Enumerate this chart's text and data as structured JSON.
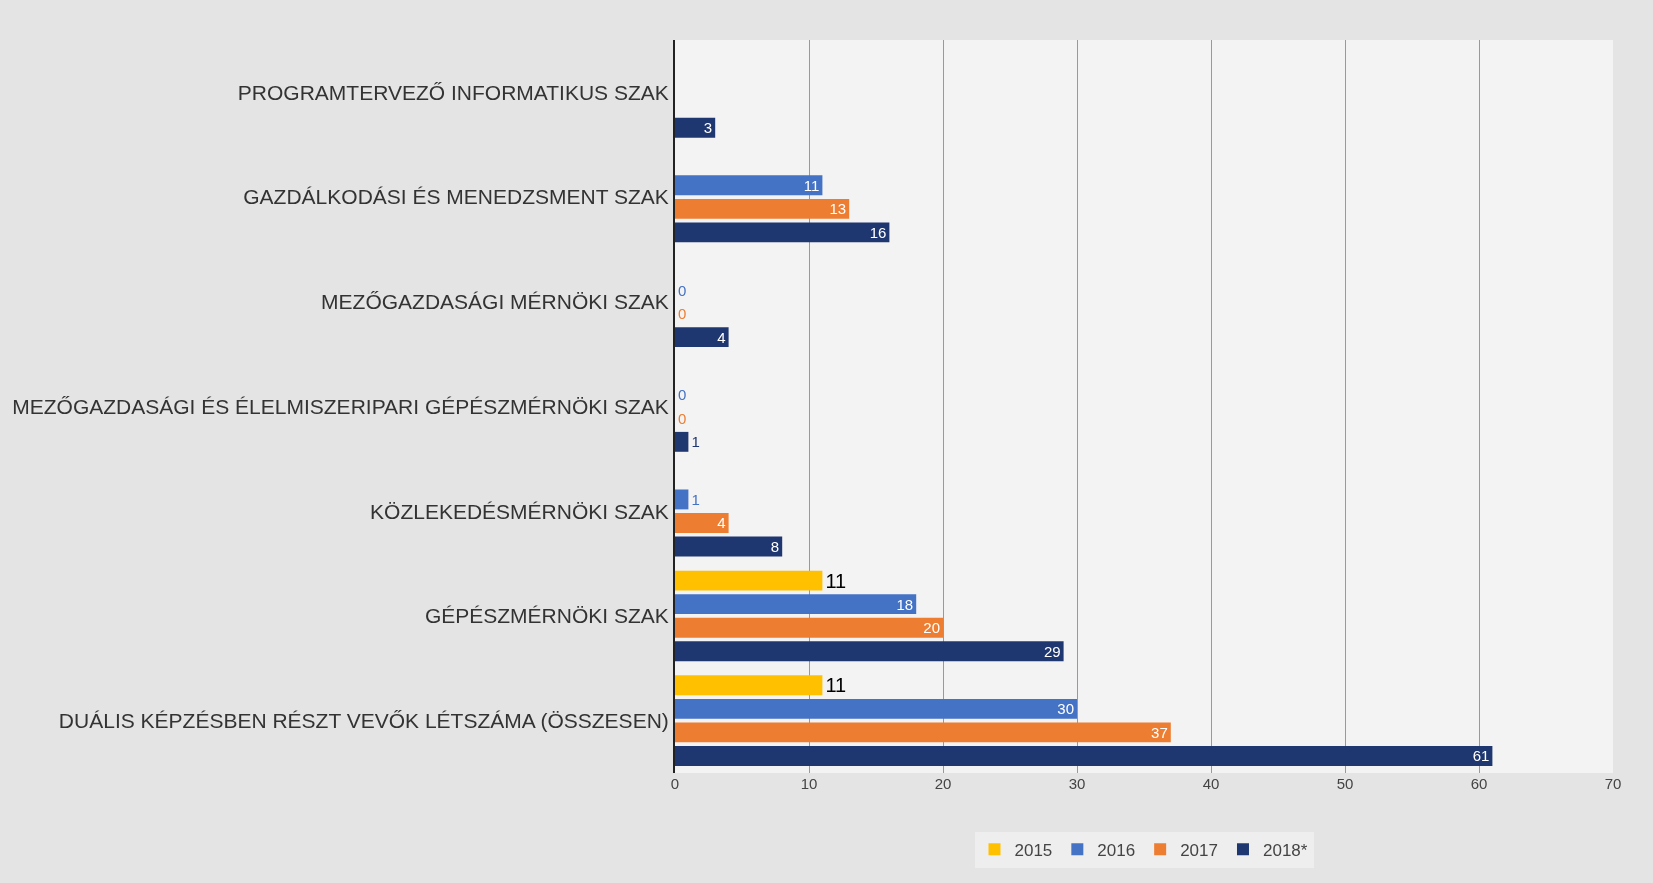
{
  "chart_data": {
    "type": "bar",
    "orientation": "horizontal",
    "categories": [
      "PROGRAMTERVEZŐ INFORMATIKUS SZAK",
      "GAZDÁLKODÁSI ÉS MENEDZSMENT SZAK",
      "MEZŐGAZDASÁGI MÉRNÖKI SZAK",
      "MEZŐGAZDASÁGI ÉS ÉLELMISZERIPARI GÉPÉSZMÉRNÖKI SZAK",
      "KÖZLEKEDÉSMÉRNÖKI SZAK",
      "GÉPÉSZMÉRNÖKI SZAK",
      "DUÁLIS KÉPZÉSBEN RÉSZT VEVŐK LÉTSZÁMA (ÖSSZESEN)"
    ],
    "series": [
      {
        "name": "2015",
        "color": "#ffc000",
        "values": [
          null,
          null,
          null,
          null,
          null,
          11,
          11
        ],
        "value_labels": [
          null,
          null,
          null,
          null,
          null,
          "11",
          "11"
        ]
      },
      {
        "name": "2016",
        "color": "#4472c4",
        "values": [
          null,
          11,
          0,
          0,
          1,
          18,
          30
        ],
        "value_labels": [
          null,
          "11",
          "0",
          "0",
          "1",
          "18",
          "30"
        ]
      },
      {
        "name": "2017",
        "color": "#ed7d31",
        "values": [
          null,
          13,
          0,
          0,
          4,
          20,
          37
        ],
        "value_labels": [
          null,
          "13",
          "0",
          "0",
          "4",
          "20",
          "37"
        ]
      },
      {
        "name": "2018*",
        "color": "#1f3770",
        "values": [
          3,
          16,
          4,
          1,
          8,
          29,
          61
        ],
        "value_labels": [
          "3",
          "16",
          "4",
          "1",
          "8",
          "29",
          "61"
        ]
      }
    ],
    "xlim": [
      0,
      70
    ],
    "xticks": [
      0,
      10,
      20,
      30,
      40,
      50,
      60,
      70
    ],
    "grid": "x",
    "legend": "bottom"
  }
}
